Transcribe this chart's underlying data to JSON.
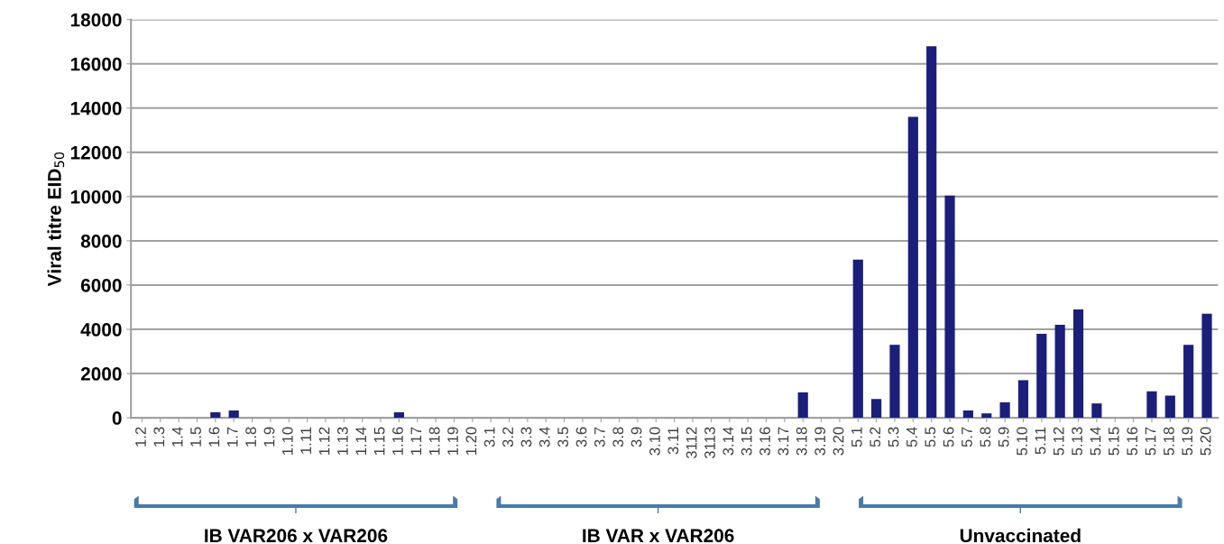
{
  "chart_data": {
    "type": "bar",
    "ylabel": "Viral titre EID$_{50}$",
    "categories": [
      "1.2",
      "1.3",
      "1.4",
      "1.5",
      "1.6",
      "1.7",
      "1.8",
      "1.9",
      "1.10",
      "1.11",
      "1.12",
      "1.13",
      "1.14",
      "1.15",
      "1.16",
      "1.17",
      "1.18",
      "1.19",
      "1.20",
      "3.1",
      "3.2",
      "3.3",
      "3.4",
      "3.5",
      "3.6",
      "3.7",
      "3.8",
      "3.9",
      "3.10",
      "3.11",
      "3112",
      "3113",
      "3.14",
      "3.15",
      "3.16",
      "3.17",
      "3.18",
      "3.19",
      "3.20",
      "5.1",
      "5.2",
      "5.3",
      "5.4",
      "5.5",
      "5.6",
      "5.7",
      "5.8",
      "5.9",
      "5.10",
      "5.11",
      "5.12",
      "5.13",
      "5.14",
      "5.15",
      "5.16",
      "5.17",
      "5.18",
      "5.19",
      "5.20"
    ],
    "values": [
      0,
      0,
      0,
      0,
      250,
      330,
      0,
      0,
      0,
      0,
      0,
      0,
      0,
      0,
      250,
      0,
      0,
      0,
      0,
      0,
      0,
      0,
      0,
      0,
      0,
      0,
      0,
      0,
      0,
      0,
      0,
      0,
      0,
      0,
      0,
      0,
      1150,
      0,
      0,
      7150,
      850,
      3300,
      13600,
      16800,
      10050,
      330,
      200,
      700,
      1700,
      3800,
      4200,
      4900,
      650,
      0,
      0,
      1200,
      1000,
      3300,
      4700
    ],
    "color": "#1b1f7a",
    "ylim": [
      0,
      18000
    ],
    "yticks": [
      0,
      2000,
      4000,
      6000,
      8000,
      10000,
      12000,
      14000,
      16000,
      18000
    ],
    "grid": "y",
    "annotations": [
      "IB VAR206 x VAR206",
      "IB VAR x VAR206",
      "Unvaccinated"
    ]
  }
}
